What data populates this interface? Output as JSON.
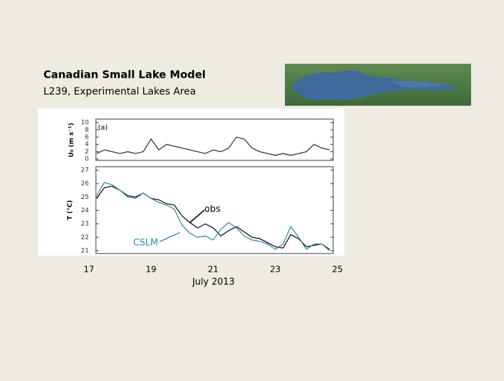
{
  "header": {
    "title": "Canadian Small Lake Model",
    "subtitle": "L239, Experimental Lakes Area"
  },
  "chart_data": [
    {
      "type": "line",
      "panel_label": "(a)",
      "ylabel": "U₀ (m s⁻¹)",
      "x": [
        17.25,
        17.5,
        17.75,
        18,
        18.25,
        18.5,
        18.75,
        19,
        19.25,
        19.5,
        19.75,
        20,
        20.25,
        20.5,
        20.75,
        21,
        21.25,
        21.5,
        21.75,
        22,
        22.25,
        22.5,
        22.75,
        23,
        23.25,
        23.5,
        23.75,
        24,
        24.25,
        24.5,
        24.75
      ],
      "series": [
        {
          "color": "#333333",
          "values": [
            1.5,
            2.5,
            2.0,
            1.5,
            2.0,
            1.5,
            2.0,
            5.5,
            2.5,
            4.0,
            3.5,
            3.0,
            2.5,
            2.0,
            1.5,
            2.5,
            2.0,
            3.0,
            6.0,
            5.5,
            3.0,
            2.0,
            1.5,
            1.0,
            1.5,
            1.0,
            1.5,
            2.0,
            4.0,
            3.0,
            2.5
          ]
        }
      ],
      "xlim": [
        17,
        25
      ],
      "ylim": [
        0,
        10
      ],
      "yticks": [
        0,
        2,
        4,
        6,
        8,
        10
      ]
    },
    {
      "type": "line",
      "ylabel": "T (°C)",
      "xlabel": "July 2013",
      "x": [
        17.25,
        17.5,
        17.75,
        18,
        18.25,
        18.5,
        18.75,
        19,
        19.25,
        19.5,
        19.75,
        20,
        20.25,
        20.5,
        20.75,
        21,
        21.25,
        21.5,
        21.75,
        22,
        22.25,
        22.5,
        22.75,
        23,
        23.25,
        23.5,
        23.75,
        24,
        24.25,
        24.5,
        24.75
      ],
      "series": [
        {
          "name": "obs",
          "color": "#111111",
          "values": [
            24.9,
            25.7,
            25.8,
            25.5,
            25.1,
            25.0,
            25.3,
            24.9,
            24.8,
            24.5,
            24.4,
            23.6,
            23.1,
            22.7,
            23.0,
            22.7,
            22.1,
            22.5,
            22.8,
            22.4,
            22.0,
            21.9,
            21.6,
            21.3,
            21.2,
            22.2,
            21.9,
            21.3,
            21.4,
            21.5,
            21.1
          ]
        },
        {
          "name": "CSLM",
          "color": "#2a8fa8",
          "values": [
            25.1,
            26.1,
            25.9,
            25.5,
            25.0,
            24.9,
            25.3,
            24.9,
            24.6,
            24.4,
            24.1,
            22.9,
            22.3,
            22.0,
            22.1,
            21.8,
            22.6,
            23.1,
            22.7,
            22.1,
            21.8,
            21.7,
            21.5,
            21.1,
            21.5,
            22.8,
            22.0,
            21.1,
            21.5,
            21.5,
            21.0
          ]
        }
      ],
      "xlim": [
        17,
        25
      ],
      "ylim": [
        21,
        27
      ],
      "yticks": [
        21,
        22,
        23,
        24,
        25,
        26,
        27
      ],
      "xticks": [
        17,
        19,
        21,
        23,
        25
      ]
    }
  ]
}
